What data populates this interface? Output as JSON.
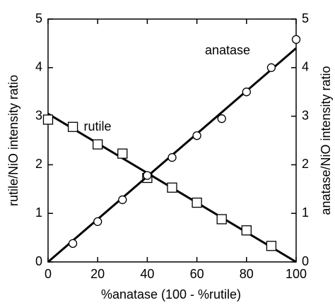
{
  "chart_data": {
    "type": "scatter",
    "xlabel": "%anatase (100 - %rutile)",
    "ylabel": "rutile/NiO intensity ratio",
    "y2label": "anatase/NiO intensity ratio",
    "xlim": [
      0,
      100
    ],
    "xticks": [
      0,
      20,
      40,
      60,
      80,
      100
    ],
    "ylim": [
      0,
      5
    ],
    "yticks": [
      0,
      1,
      2,
      3,
      4,
      5
    ],
    "y2lim": [
      0,
      5
    ],
    "y2ticks": [
      0,
      1,
      2,
      3,
      4,
      5
    ],
    "series": [
      {
        "name": "rutile",
        "marker": "square",
        "color": "#000000",
        "x": [
          0,
          10,
          20,
          30,
          40,
          50,
          60,
          70,
          80,
          90
        ],
        "values": [
          2.93,
          2.78,
          2.42,
          2.23,
          1.73,
          1.53,
          1.22,
          0.88,
          0.65,
          0.33
        ],
        "fit_x": [
          0,
          100
        ],
        "fit_values": [
          3.05,
          0.0
        ]
      },
      {
        "name": "anatase",
        "marker": "circle",
        "color": "#000000",
        "axis": "y2",
        "x": [
          10,
          20,
          30,
          40,
          50,
          60,
          70,
          80,
          90,
          100
        ],
        "values": [
          0.38,
          0.83,
          1.28,
          1.78,
          2.15,
          2.6,
          2.95,
          3.5,
          4.0,
          4.58
        ],
        "fit_x": [
          0,
          100
        ],
        "fit_values": [
          0.0,
          4.4
        ]
      }
    ]
  }
}
